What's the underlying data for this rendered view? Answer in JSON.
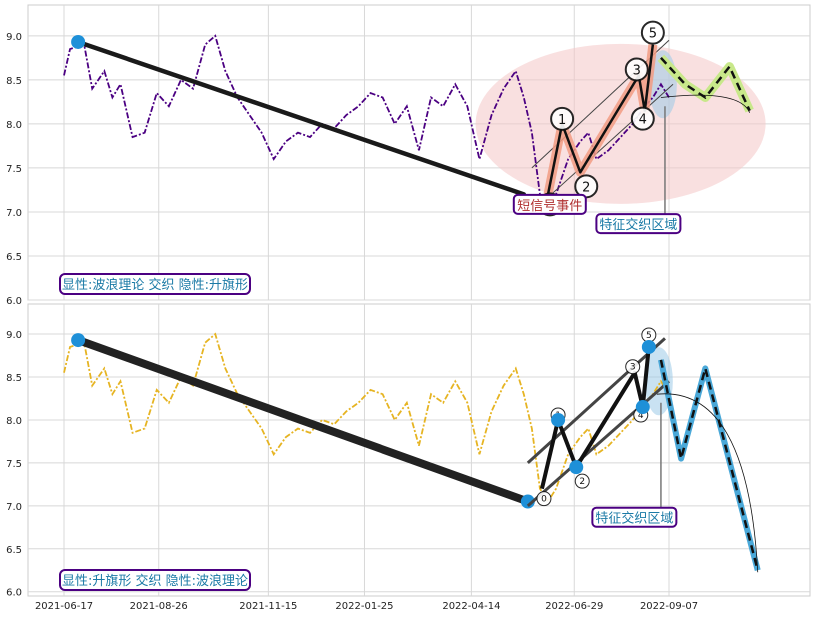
{
  "chart_data": [
    {
      "type": "line",
      "panel": "top",
      "x_dates": [
        "2021-06-17",
        "2021-08-26",
        "2021-11-15",
        "2022-01-25",
        "2022-04-14",
        "2022-06-29",
        "2022-09-07"
      ],
      "ylim": [
        6.0,
        9.35
      ],
      "yticks": [
        "6.0",
        "6.5",
        "7.0",
        "7.5",
        "8.0",
        "8.5",
        "9.0"
      ],
      "price_color": "#4b0082",
      "price_series": [
        [
          0,
          8.55
        ],
        [
          3,
          8.85
        ],
        [
          10,
          8.9
        ],
        [
          14,
          8.4
        ],
        [
          20,
          8.6
        ],
        [
          24,
          8.3
        ],
        [
          28,
          8.45
        ],
        [
          34,
          7.85
        ],
        [
          40,
          7.9
        ],
        [
          46,
          8.35
        ],
        [
          52,
          8.2
        ],
        [
          58,
          8.5
        ],
        [
          64,
          8.4
        ],
        [
          70,
          8.9
        ],
        [
          75,
          9.0
        ],
        [
          80,
          8.6
        ],
        [
          86,
          8.3
        ],
        [
          92,
          8.1
        ],
        [
          98,
          7.9
        ],
        [
          104,
          7.6
        ],
        [
          110,
          7.8
        ],
        [
          116,
          7.9
        ],
        [
          122,
          7.85
        ],
        [
          128,
          8.0
        ],
        [
          134,
          7.95
        ],
        [
          140,
          8.1
        ],
        [
          146,
          8.2
        ],
        [
          152,
          8.35
        ],
        [
          158,
          8.3
        ],
        [
          164,
          8.0
        ],
        [
          170,
          8.2
        ],
        [
          176,
          7.7
        ],
        [
          182,
          8.3
        ],
        [
          188,
          8.2
        ],
        [
          194,
          8.45
        ],
        [
          200,
          8.2
        ],
        [
          206,
          7.6
        ],
        [
          212,
          8.1
        ],
        [
          218,
          8.4
        ],
        [
          224,
          8.6
        ],
        [
          228,
          8.3
        ],
        [
          232,
          7.9
        ],
        [
          236,
          7.2
        ],
        [
          240,
          7.05
        ],
        [
          244,
          7.2
        ],
        [
          250,
          7.6
        ],
        [
          256,
          7.8
        ],
        [
          260,
          7.9
        ],
        [
          264,
          7.6
        ],
        [
          270,
          7.7
        ],
        [
          276,
          7.85
        ],
        [
          282,
          8.0
        ],
        [
          288,
          8.2
        ],
        [
          292,
          8.3
        ],
        [
          296,
          8.45
        ],
        [
          300,
          8.3
        ]
      ],
      "projection_color": "#c8e88a",
      "projection_series": [
        [
          296,
          8.75
        ],
        [
          308,
          8.45
        ],
        [
          318,
          8.3
        ],
        [
          330,
          8.65
        ],
        [
          340,
          8.15
        ]
      ],
      "trendline": [
        [
          7,
          8.93
        ],
        [
          228,
          7.2
        ]
      ],
      "wave_points": [
        {
          "label": "0",
          "x": 240,
          "y": 7.2
        },
        {
          "label": "1",
          "x": 247,
          "y": 8.0
        },
        {
          "label": "2",
          "x": 256,
          "y": 7.45
        },
        {
          "label": "3",
          "x": 285,
          "y": 8.55
        },
        {
          "label": "4",
          "x": 288,
          "y": 8.15
        },
        {
          "label": "5",
          "x": 292,
          "y": 8.9
        }
      ],
      "annotation_event": "短信号事件",
      "annotation_zone": "特征交织区域",
      "legend_text": "显性:波浪理论 交织 隐性:升旗形"
    },
    {
      "type": "line",
      "panel": "bottom",
      "x_dates": [
        "2021-06-17",
        "2021-08-26",
        "2021-11-15",
        "2022-01-25",
        "2022-04-14",
        "2022-06-29",
        "2022-09-07"
      ],
      "ylim": [
        5.95,
        9.35
      ],
      "yticks": [
        "6.0",
        "6.5",
        "7.0",
        "7.5",
        "8.0",
        "8.5",
        "9.0"
      ],
      "price_color": "#e6b422",
      "price_series": [
        [
          0,
          8.55
        ],
        [
          3,
          8.85
        ],
        [
          10,
          8.9
        ],
        [
          14,
          8.4
        ],
        [
          20,
          8.6
        ],
        [
          24,
          8.3
        ],
        [
          28,
          8.45
        ],
        [
          34,
          7.85
        ],
        [
          40,
          7.9
        ],
        [
          46,
          8.35
        ],
        [
          52,
          8.2
        ],
        [
          58,
          8.5
        ],
        [
          64,
          8.4
        ],
        [
          70,
          8.9
        ],
        [
          75,
          9.0
        ],
        [
          80,
          8.6
        ],
        [
          86,
          8.3
        ],
        [
          92,
          8.1
        ],
        [
          98,
          7.9
        ],
        [
          104,
          7.6
        ],
        [
          110,
          7.8
        ],
        [
          116,
          7.9
        ],
        [
          122,
          7.85
        ],
        [
          128,
          8.0
        ],
        [
          134,
          7.95
        ],
        [
          140,
          8.1
        ],
        [
          146,
          8.2
        ],
        [
          152,
          8.35
        ],
        [
          158,
          8.3
        ],
        [
          164,
          8.0
        ],
        [
          170,
          8.2
        ],
        [
          176,
          7.7
        ],
        [
          182,
          8.3
        ],
        [
          188,
          8.2
        ],
        [
          194,
          8.45
        ],
        [
          200,
          8.2
        ],
        [
          206,
          7.6
        ],
        [
          212,
          8.1
        ],
        [
          218,
          8.4
        ],
        [
          224,
          8.6
        ],
        [
          228,
          8.3
        ],
        [
          232,
          7.9
        ],
        [
          236,
          7.2
        ],
        [
          240,
          7.05
        ],
        [
          244,
          7.2
        ],
        [
          250,
          7.6
        ],
        [
          256,
          7.8
        ],
        [
          260,
          7.9
        ],
        [
          264,
          7.6
        ],
        [
          270,
          7.7
        ],
        [
          276,
          7.85
        ],
        [
          282,
          8.0
        ],
        [
          288,
          8.2
        ],
        [
          292,
          8.3
        ],
        [
          296,
          8.45
        ],
        [
          300,
          8.3
        ]
      ],
      "projection_color": "#4aa8d8",
      "projection_series": [
        [
          296,
          8.7
        ],
        [
          306,
          7.55
        ],
        [
          318,
          8.6
        ],
        [
          344,
          6.25
        ]
      ],
      "trendline": [
        [
          7,
          8.93
        ],
        [
          230,
          7.05
        ]
      ],
      "wave_points": [
        {
          "label": "0",
          "x": 237,
          "y": 7.2
        },
        {
          "label": "1",
          "x": 245,
          "y": 8.0
        },
        {
          "label": "2",
          "x": 254,
          "y": 7.45
        },
        {
          "label": "3",
          "x": 283,
          "y": 8.55
        },
        {
          "label": "4",
          "x": 287,
          "y": 8.15
        },
        {
          "label": "5",
          "x": 290,
          "y": 8.85
        }
      ],
      "annotation_zone": "特征交织区域",
      "legend_text": "显性:升旗形 交织 隐性:波浪理论"
    }
  ]
}
